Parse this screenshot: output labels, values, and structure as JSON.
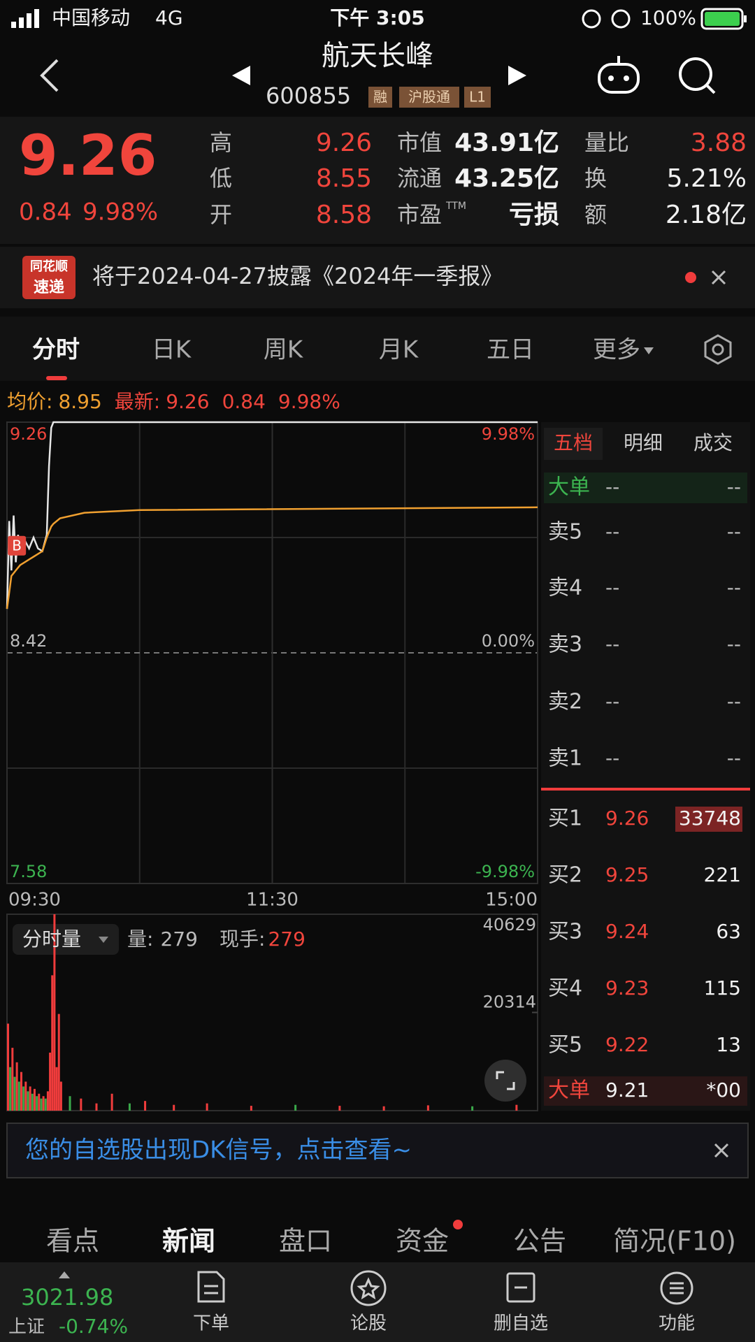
{
  "status_bar": {
    "carrier": "中国移动",
    "network": "4G",
    "time": "下午 3:05",
    "battery": "100%"
  },
  "header": {
    "name": "航天长峰",
    "code": "600855",
    "tags": [
      "融",
      "沪股通",
      "L1"
    ]
  },
  "quote": {
    "price": "9.26",
    "change": "0.84",
    "change_pct": "9.98%",
    "stats": [
      [
        {
          "label": "高",
          "value": "9.26"
        },
        {
          "label": "低",
          "value": "8.55"
        },
        {
          "label": "开",
          "value": "8.58"
        }
      ],
      [
        {
          "label": "市值",
          "value": "43.91亿"
        },
        {
          "label": "流通",
          "value": "43.25亿"
        },
        {
          "label": "市盈",
          "sup": "TTM",
          "value": "亏损"
        }
      ],
      [
        {
          "label": "量比",
          "value": "3.88"
        },
        {
          "label": "换",
          "value": "5.21%"
        },
        {
          "label": "额",
          "value": "2.18亿"
        }
      ]
    ]
  },
  "notice": {
    "logo_top": "同花顺",
    "logo_bottom": "速递",
    "text": "将于2024-04-27披露《2024年一季报》"
  },
  "tabs": [
    "分时",
    "日K",
    "周K",
    "月K",
    "五日",
    "更多"
  ],
  "info_line": {
    "avg_label": "均价:",
    "avg": "8.95",
    "latest_label": "最新:",
    "latest": "9.26",
    "change": "0.84",
    "change_pct": "9.98%"
  },
  "chart_data": [
    {
      "type": "line",
      "xlim": [
        0,
        240
      ],
      "xticks": [
        {
          "value": 0,
          "label": "09:30"
        },
        {
          "value": 120,
          "label": "11:30"
        },
        {
          "value": 240,
          "label": "15:00"
        }
      ],
      "ylim": [
        7.58,
        9.26
      ],
      "yticks": [
        9.26,
        8.42,
        7.58
      ],
      "y2lim": [
        -9.98,
        9.98
      ],
      "y2ticks": [
        {
          "value": 9.98,
          "label": "9.98%"
        },
        {
          "value": 0,
          "label": "0.00%"
        },
        {
          "value": -9.98,
          "label": "-9.98%"
        }
      ],
      "x": [
        0,
        1,
        2,
        3,
        4,
        5,
        6,
        8,
        10,
        12,
        14,
        16,
        18,
        19,
        20,
        21,
        24,
        35,
        60,
        240
      ],
      "series": [
        {
          "color": "#e6e6e6",
          "values": [
            8.58,
            8.9,
            8.72,
            8.92,
            8.75,
            8.85,
            8.78,
            8.83,
            8.8,
            8.84,
            8.8,
            8.79,
            8.85,
            9.1,
            9.24,
            9.26,
            9.26,
            9.26,
            9.26,
            9.26
          ]
        },
        {
          "color": "#f0a030",
          "values": [
            8.58,
            8.64,
            8.7,
            8.71,
            8.72,
            8.73,
            8.74,
            8.75,
            8.76,
            8.77,
            8.78,
            8.79,
            8.84,
            8.86,
            8.88,
            8.89,
            8.91,
            8.93,
            8.94,
            8.95
          ]
        }
      ],
      "markers": [
        {
          "label": "B",
          "x": 1,
          "value": 8.81
        }
      ]
    },
    {
      "type": "bar",
      "xlim": [
        0,
        240
      ],
      "ylim": [
        0,
        40629
      ],
      "yticks": [
        20314,
        40629
      ],
      "x": [
        0,
        1,
        2,
        3,
        4,
        5,
        6,
        7,
        8,
        9,
        10,
        11,
        12,
        13,
        14,
        15,
        16,
        17,
        18,
        19,
        20,
        21,
        22,
        23,
        24,
        28,
        33,
        40,
        47,
        55,
        62,
        75,
        90,
        110,
        130,
        150,
        170,
        190,
        210,
        230
      ],
      "values": [
        18000,
        9000,
        13000,
        7000,
        10000,
        6000,
        8000,
        5000,
        6000,
        4000,
        5000,
        3500,
        4500,
        3000,
        3500,
        2500,
        3000,
        2500,
        4000,
        12000,
        28000,
        40629,
        9000,
        20000,
        6000,
        3000,
        2500,
        1500,
        3500,
        1500,
        2000,
        1200,
        1500,
        1000,
        1200,
        1000,
        900,
        1100,
        900,
        1200
      ],
      "colors": [
        "#f03c3c",
        "#3aa84a",
        "#f03c3c",
        "#3aa84a",
        "#f03c3c",
        "#3aa84a",
        "#f03c3c",
        "#3aa84a",
        "#f03c3c",
        "#3aa84a",
        "#f03c3c",
        "#3aa84a",
        "#f03c3c",
        "#3aa84a",
        "#f03c3c",
        "#3aa84a",
        "#f03c3c",
        "#3aa84a",
        "#f03c3c",
        "#f03c3c",
        "#f03c3c",
        "#f03c3c",
        "#f03c3c",
        "#f03c3c",
        "#f03c3c",
        "#3aa84a",
        "#f03c3c",
        "#f03c3c",
        "#f03c3c",
        "#3aa84a",
        "#f03c3c",
        "#f03c3c",
        "#f03c3c",
        "#f03c3c",
        "#3aa84a",
        "#f03c3c",
        "#f03c3c",
        "#f03c3c",
        "#3aa84a",
        "#f03c3c"
      ]
    }
  ],
  "volume_header": {
    "selector": "分时量",
    "vol_label": "量:",
    "vol": "279",
    "hand_label": "现手:",
    "hand": "279"
  },
  "order_book": {
    "tabs": [
      "五档",
      "明细",
      "成交"
    ],
    "big_top": {
      "label": "大单",
      "price": "--",
      "vol": "--"
    },
    "asks": [
      {
        "label": "卖5",
        "price": "--",
        "vol": "--"
      },
      {
        "label": "卖4",
        "price": "--",
        "vol": "--"
      },
      {
        "label": "卖3",
        "price": "--",
        "vol": "--"
      },
      {
        "label": "卖2",
        "price": "--",
        "vol": "--"
      },
      {
        "label": "卖1",
        "price": "--",
        "vol": "--"
      }
    ],
    "bids": [
      {
        "label": "买1",
        "price": "9.26",
        "vol": "33748"
      },
      {
        "label": "买2",
        "price": "9.25",
        "vol": "221"
      },
      {
        "label": "买3",
        "price": "9.24",
        "vol": "63"
      },
      {
        "label": "买4",
        "price": "9.23",
        "vol": "115"
      },
      {
        "label": "买5",
        "price": "9.22",
        "vol": "13"
      }
    ],
    "big_bottom": {
      "label": "大单",
      "price": "9.21",
      "vol": "*00"
    }
  },
  "banner": "您的自选股出现DK信号，点击查看~",
  "bottom_tabs": [
    "看点",
    "新闻",
    "盘口",
    "资金",
    "公告",
    "简况(F10)"
  ],
  "nav": {
    "index_value": "3021.98",
    "index_name": "上证",
    "index_change": "-0.74%",
    "items": [
      "下单",
      "论股",
      "删自选",
      "功能"
    ]
  }
}
